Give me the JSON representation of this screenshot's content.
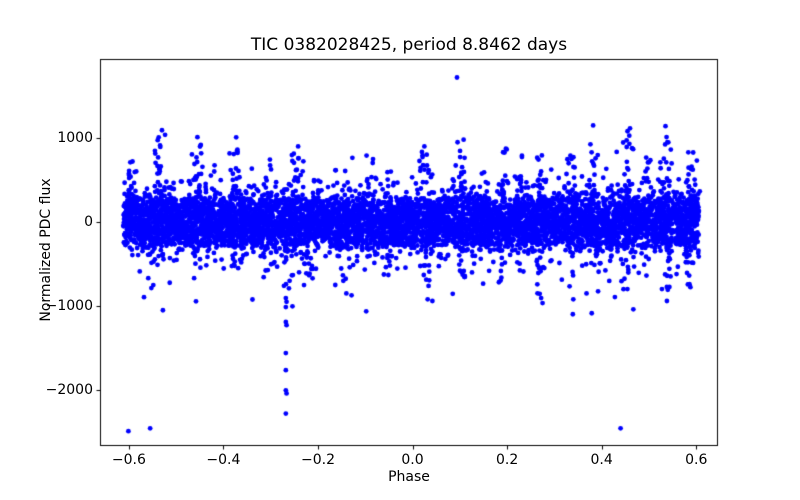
{
  "chart_data": {
    "type": "scatter",
    "title": "TIC 0382028425, period 8.8462 days",
    "xlabel": "Phase",
    "ylabel": "Normalized PDC flux",
    "xlim": [
      -0.66,
      0.645
    ],
    "ylim": [
      -2660,
      1940
    ],
    "grid": false,
    "legend": null,
    "xticks": [
      {
        "label": "−0.6",
        "value": -0.6
      },
      {
        "label": "−0.4",
        "value": -0.4
      },
      {
        "label": "−0.2",
        "value": -0.2
      },
      {
        "label": "0.0",
        "value": 0.0
      },
      {
        "label": "0.2",
        "value": 0.2
      },
      {
        "label": "0.4",
        "value": 0.4
      },
      {
        "label": "0.6",
        "value": 0.6
      }
    ],
    "yticks": [
      {
        "label": "1000",
        "value": 1000
      },
      {
        "label": "0",
        "value": 0
      },
      {
        "label": "−1000",
        "value": -1000
      },
      {
        "label": "−2000",
        "value": -2000
      }
    ],
    "marker": {
      "color": "#0000ff",
      "radius": 2.4
    },
    "axis_color": "#000000",
    "x_data_range": [
      -0.612,
      0.606
    ],
    "generation": {
      "seed": 42,
      "cluster_x_jitter": 0.006,
      "band_layers": [
        [
          2500,
          "u",
          280
        ],
        [
          2800,
          "g",
          160
        ],
        [
          1200,
          "g",
          250
        ],
        [
          260,
          "g",
          340
        ]
      ],
      "up_clusters": [
        [
          -0.595,
          760,
          10
        ],
        [
          -0.535,
          1050,
          24
        ],
        [
          -0.455,
          980,
          24
        ],
        [
          -0.375,
          980,
          22
        ],
        [
          -0.305,
          760,
          12
        ],
        [
          -0.242,
          870,
          16
        ],
        [
          -0.165,
          700,
          10
        ],
        [
          -0.09,
          800,
          12
        ],
        [
          0.025,
          870,
          14
        ],
        [
          0.105,
          950,
          20
        ],
        [
          0.15,
          740,
          8
        ],
        [
          0.19,
          880,
          16
        ],
        [
          0.225,
          800,
          10
        ],
        [
          0.27,
          800,
          12
        ],
        [
          0.34,
          860,
          12
        ],
        [
          0.385,
          1100,
          14
        ],
        [
          0.455,
          1080,
          22
        ],
        [
          0.5,
          800,
          10
        ],
        [
          0.535,
          1100,
          24
        ],
        [
          0.59,
          880,
          14
        ]
      ],
      "down_clusters": [
        [
          -0.55,
          -820,
          10
        ],
        [
          -0.46,
          -780,
          10
        ],
        [
          -0.375,
          -730,
          8
        ],
        [
          -0.3,
          -800,
          10
        ],
        [
          -0.268,
          -820,
          10
        ],
        [
          -0.22,
          -700,
          8
        ],
        [
          -0.14,
          -760,
          8
        ],
        [
          -0.05,
          -650,
          6
        ],
        [
          0.03,
          -790,
          10
        ],
        [
          0.105,
          -790,
          10
        ],
        [
          0.19,
          -740,
          8
        ],
        [
          0.27,
          -800,
          10
        ],
        [
          0.34,
          -800,
          8
        ],
        [
          0.42,
          -700,
          6
        ],
        [
          0.46,
          -830,
          10
        ],
        [
          0.54,
          -880,
          12
        ],
        [
          0.585,
          -800,
          10
        ]
      ]
    },
    "outlier_points": [
      [
        -0.601,
        -2490
      ],
      [
        -0.555,
        -2455
      ],
      [
        0.44,
        -2455
      ],
      [
        0.094,
        1720
      ],
      [
        -0.268,
        -905
      ],
      [
        -0.2665,
        -950
      ],
      [
        -0.268,
        -1012
      ],
      [
        -0.268,
        -1190
      ],
      [
        -0.2665,
        -1228
      ],
      [
        -0.268,
        -1560
      ],
      [
        -0.268,
        -1763
      ],
      [
        -0.268,
        -2003
      ],
      [
        -0.2665,
        -2040
      ],
      [
        -0.268,
        -2280
      ],
      [
        -0.254,
        -1003
      ],
      [
        -0.26,
        -700
      ],
      [
        -0.272,
        -760
      ],
      [
        -0.568,
        -895
      ],
      [
        -0.528,
        -1050
      ],
      [
        -0.458,
        -944
      ],
      [
        -0.14,
        -850
      ],
      [
        -0.129,
        -873
      ],
      [
        -0.098,
        -1063
      ],
      [
        0.032,
        -920
      ],
      [
        0.042,
        -940
      ],
      [
        0.085,
        -855
      ],
      [
        0.269,
        -855
      ],
      [
        0.272,
        -905
      ],
      [
        0.275,
        -965
      ],
      [
        0.34,
        -920
      ],
      [
        0.339,
        -1098
      ],
      [
        0.368,
        -850
      ],
      [
        0.379,
        -1086
      ],
      [
        0.428,
        -893
      ],
      [
        0.467,
        -1039
      ],
      [
        0.538,
        -940
      ],
      [
        0.382,
        1150
      ],
      [
        -0.53,
        1092
      ],
      [
        0.46,
        1115
      ],
      [
        -0.455,
        1010
      ],
      [
        -0.373,
        1008
      ],
      [
        0.108,
        980
      ],
      [
        0.535,
        1140
      ],
      [
        0.025,
        900
      ],
      [
        -0.242,
        900
      ]
    ]
  }
}
